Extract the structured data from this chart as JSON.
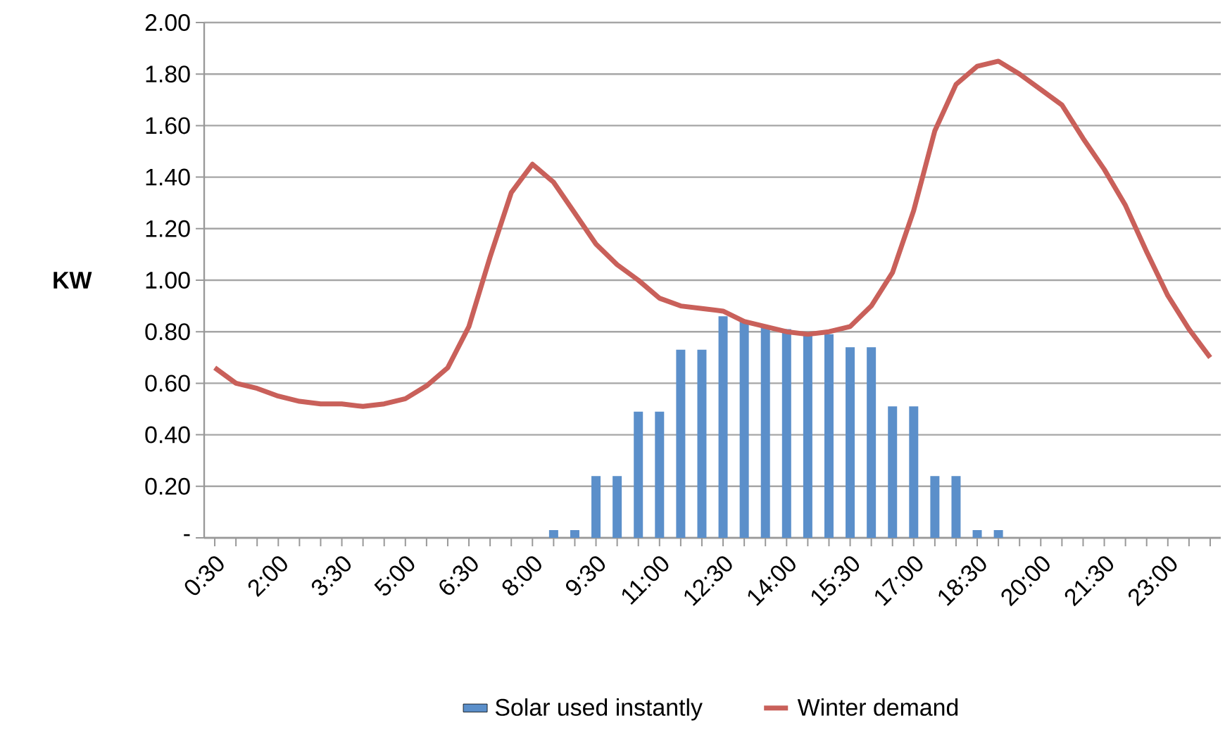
{
  "chart_data": {
    "type": "bar",
    "ylabel": "KW",
    "categories": [
      "0:30",
      null,
      null,
      "2:00",
      null,
      null,
      "3:30",
      null,
      null,
      "5:00",
      null,
      null,
      "6:30",
      null,
      null,
      "8:00",
      null,
      null,
      "9:30",
      null,
      null,
      "11:00",
      null,
      null,
      "12:30",
      null,
      null,
      "14:00",
      null,
      null,
      "15:30",
      null,
      null,
      "17:00",
      null,
      null,
      "18:30",
      null,
      null,
      "20:00",
      null,
      null,
      "21:30",
      null,
      null,
      "23:00",
      null,
      null
    ],
    "series": [
      {
        "name": "Solar used instantly",
        "color": "#5b8fca",
        "values": [
          0,
          0,
          0,
          0,
          0,
          0,
          0,
          0,
          0,
          0,
          0,
          0,
          0,
          0,
          0,
          0,
          0.03,
          0.03,
          0.24,
          0.24,
          0.49,
          0.49,
          0.73,
          0.73,
          0.86,
          0.84,
          0.82,
          0.81,
          0.79,
          0.79,
          0.74,
          0.74,
          0.51,
          0.51,
          0.24,
          0.24,
          0.03,
          0.03,
          0,
          0,
          0,
          0,
          0,
          0,
          0,
          0,
          0,
          0
        ]
      },
      {
        "name": "Winter demand",
        "type": "line",
        "color": "#c9605a",
        "values": [
          0.66,
          0.6,
          0.58,
          0.55,
          0.53,
          0.52,
          0.52,
          0.51,
          0.52,
          0.54,
          0.59,
          0.66,
          0.82,
          1.09,
          1.34,
          1.45,
          1.38,
          1.26,
          1.14,
          1.06,
          1.0,
          0.93,
          0.9,
          0.89,
          0.88,
          0.84,
          0.82,
          0.8,
          0.79,
          0.8,
          0.82,
          0.9,
          1.03,
          1.27,
          1.58,
          1.76,
          1.83,
          1.85,
          1.8,
          1.74,
          1.68,
          1.55,
          1.43,
          1.29,
          1.11,
          0.94,
          0.81,
          0.7
        ]
      }
    ],
    "ylim": [
      0,
      2
    ],
    "yticks": [
      {
        "value": 0,
        "label": "-"
      },
      {
        "value": 0.2,
        "label": "0.20"
      },
      {
        "value": 0.4,
        "label": "0.40"
      },
      {
        "value": 0.6,
        "label": "0.60"
      },
      {
        "value": 0.8,
        "label": "0.80"
      },
      {
        "value": 1,
        "label": "1.00"
      },
      {
        "value": 1.2,
        "label": "1.20"
      },
      {
        "value": 1.4,
        "label": "1.40"
      },
      {
        "value": 1.6,
        "label": "1.60"
      },
      {
        "value": 1.8,
        "label": "1.80"
      },
      {
        "value": 2,
        "label": "2.00"
      }
    ],
    "grid": "y",
    "legend": "bottom"
  }
}
